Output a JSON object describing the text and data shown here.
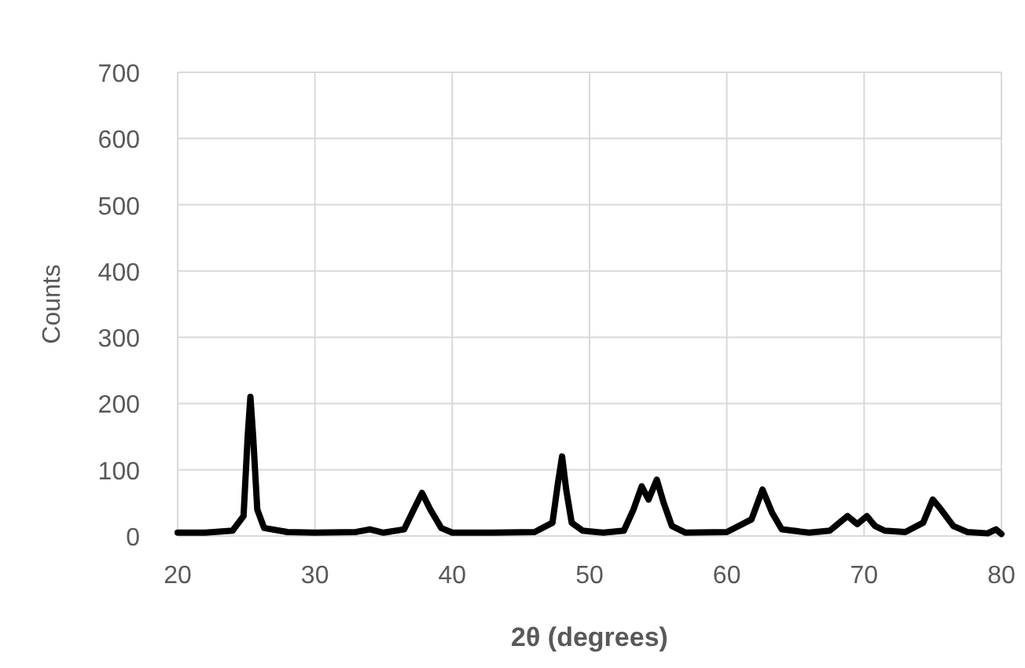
{
  "chart_data": {
    "type": "line",
    "xlabel": "2θ (degrees)",
    "ylabel": "Counts",
    "xlim": [
      20,
      80
    ],
    "xticks": [
      20,
      30,
      40,
      50,
      60,
      70,
      80
    ],
    "ylim": [
      0,
      700
    ],
    "yticks": [
      0,
      100,
      200,
      300,
      400,
      500,
      600,
      700
    ],
    "grid": true,
    "marker": "none",
    "line_style": "solid",
    "series": [
      {
        "color": "#000000",
        "x": [
          20,
          22,
          24,
          24.8,
          25.1,
          25.3,
          25.5,
          25.8,
          26.3,
          28,
          30,
          33,
          34,
          35,
          36.5,
          37.2,
          37.8,
          38.4,
          39.2,
          40,
          43,
          46,
          47.3,
          47.7,
          48,
          48.3,
          48.7,
          49.5,
          51,
          52.5,
          53.2,
          53.8,
          54.3,
          54.9,
          55.4,
          56,
          57,
          60,
          61.8,
          62.6,
          63.3,
          64,
          66,
          67.5,
          68.2,
          68.8,
          69.5,
          70.2,
          70.8,
          71.5,
          73,
          74.3,
          75,
          75.6,
          76.5,
          77.5,
          79,
          79.6,
          80
        ],
        "values": [
          5,
          5,
          8,
          30,
          150,
          210,
          150,
          40,
          12,
          6,
          5,
          6,
          10,
          5,
          10,
          40,
          65,
          40,
          12,
          5,
          5,
          6,
          20,
          80,
          120,
          70,
          20,
          8,
          5,
          8,
          40,
          75,
          55,
          85,
          50,
          15,
          5,
          6,
          25,
          70,
          35,
          10,
          5,
          8,
          20,
          30,
          18,
          30,
          15,
          8,
          6,
          20,
          55,
          40,
          15,
          6,
          4,
          10,
          3
        ]
      }
    ]
  }
}
